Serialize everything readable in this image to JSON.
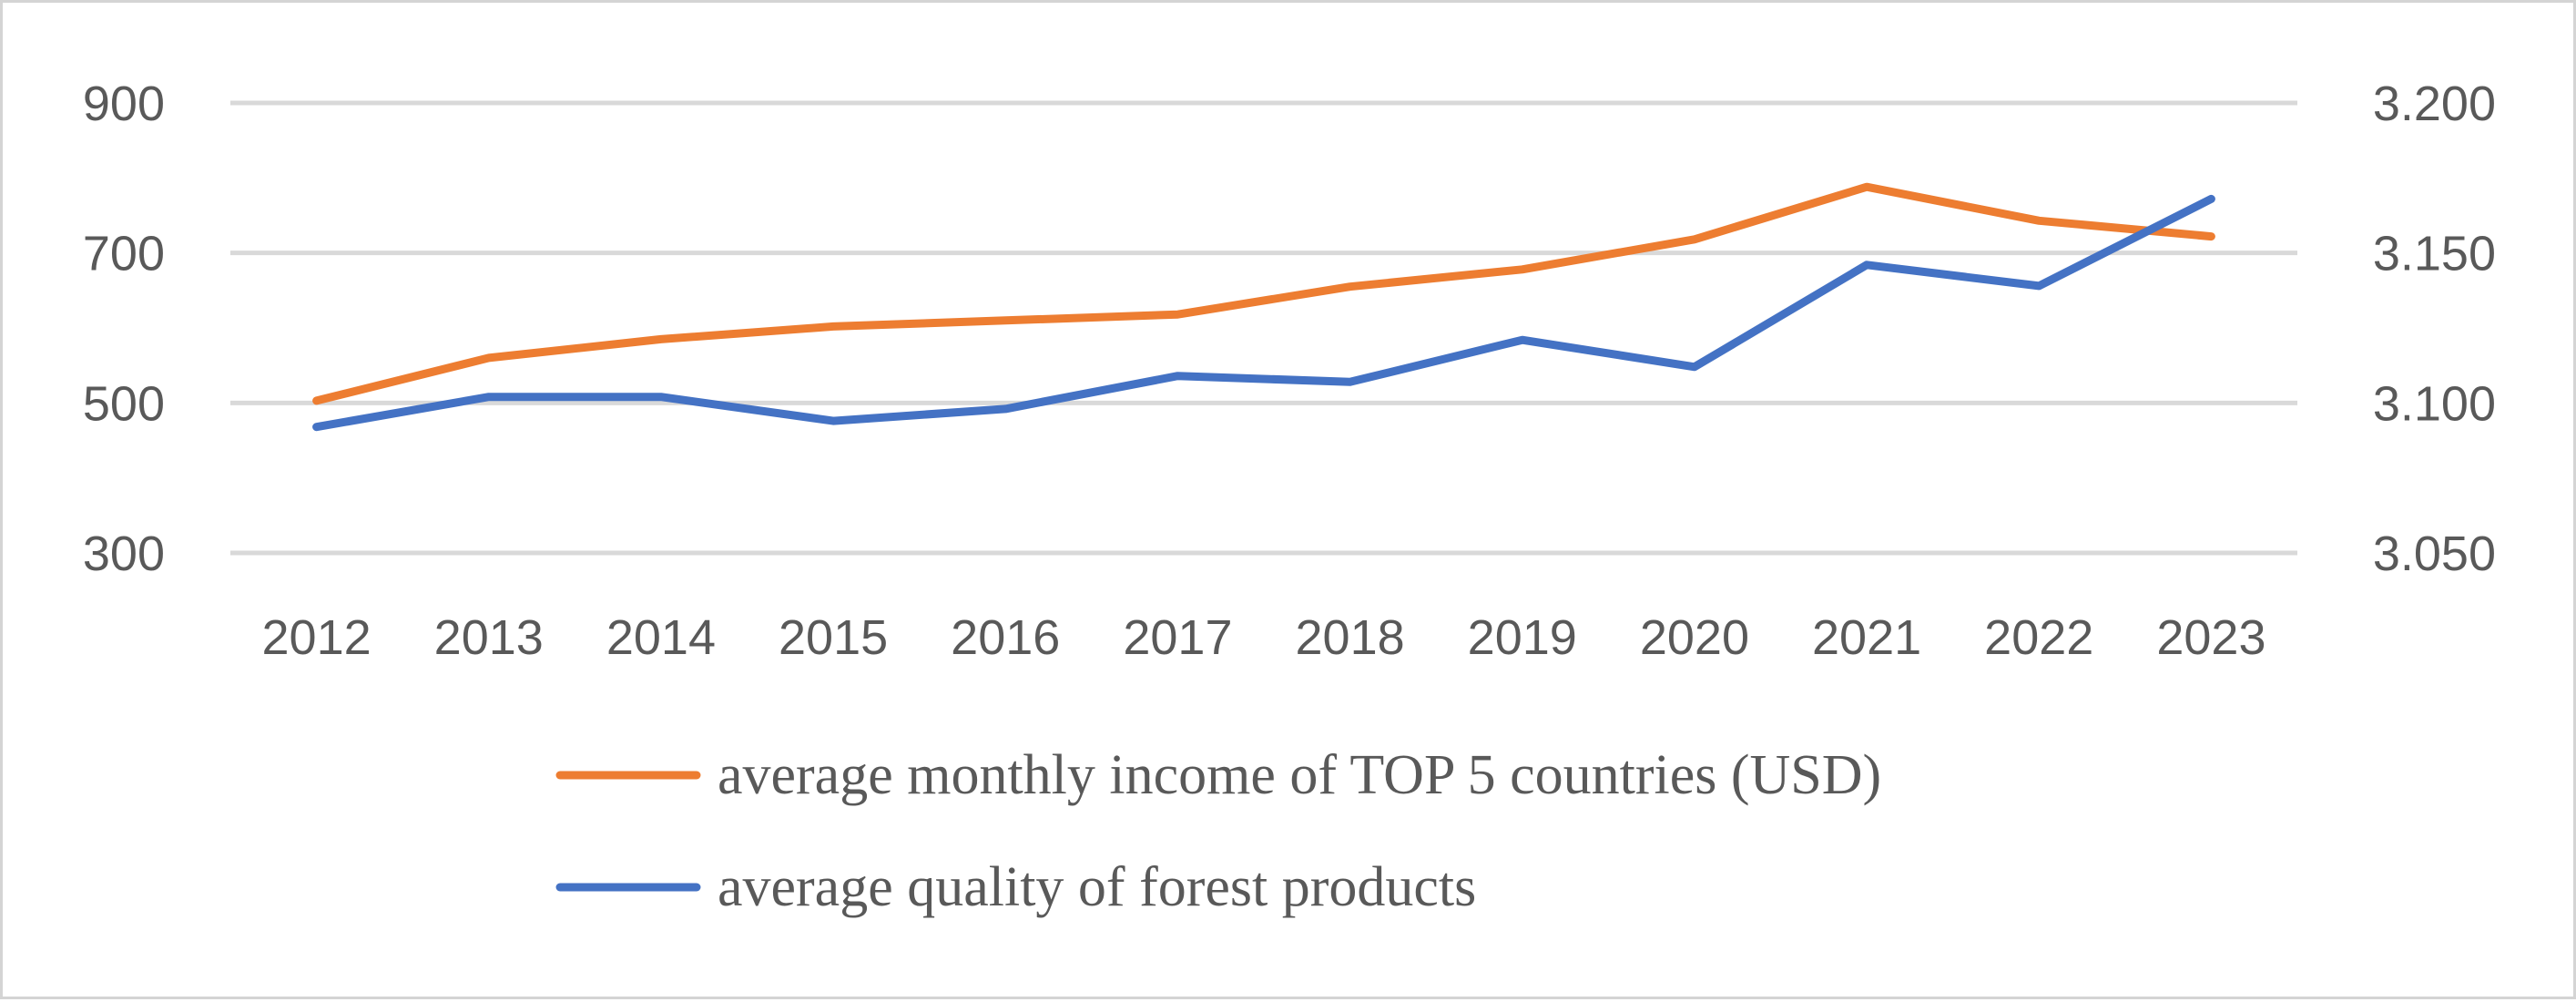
{
  "chart_data": {
    "type": "line",
    "title": "",
    "categories": [
      "2012",
      "2013",
      "2014",
      "2015",
      "2016",
      "2017",
      "2018",
      "2019",
      "2020",
      "2021",
      "2022",
      "2023"
    ],
    "y_left": {
      "ticks": [
        "900",
        "700",
        "500",
        "300"
      ],
      "ylim": [
        300,
        900
      ]
    },
    "y_right": {
      "ticks": [
        "3.200",
        "3.150",
        "3.100",
        "3.050"
      ],
      "ylim": [
        3.05,
        3.2
      ]
    },
    "grid": true,
    "legend_position": "bottom",
    "series": [
      {
        "name": "average monthly income of TOP 5 countries (USD)",
        "axis": "left",
        "color": "#ed7d31",
        "values": [
          503,
          560,
          585,
          602,
          610,
          618,
          655,
          678,
          718,
          788,
          743,
          722
        ]
      },
      {
        "name": "average quality of forest products",
        "axis": "right",
        "color": "#4472c4",
        "values": [
          3.092,
          3.102,
          3.102,
          3.094,
          3.098,
          3.109,
          3.107,
          3.121,
          3.112,
          3.146,
          3.139,
          3.168
        ]
      }
    ]
  }
}
